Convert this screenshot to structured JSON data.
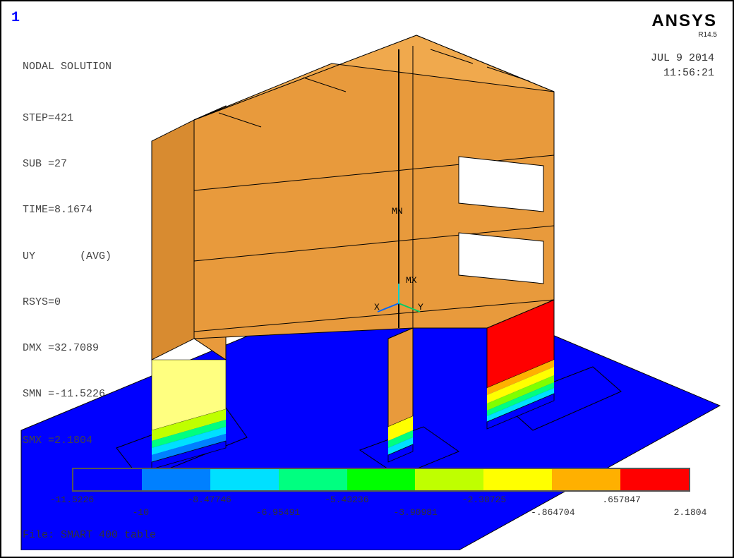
{
  "window_number": "1",
  "header": {
    "title": "NODAL SOLUTION",
    "lines": [
      "STEP=421",
      "SUB =27",
      "TIME=8.1674",
      "UY       (AVG)",
      "RSYS=0",
      "DMX =32.7089",
      "SMN =-11.5226",
      "SMX =2.1804"
    ]
  },
  "branding": {
    "brand": "ANSYS",
    "version": "R14.5"
  },
  "datetime": {
    "date": "JUL  9 2014",
    "time": "11:56:21"
  },
  "labels": {
    "mn": "MN",
    "mx": "MX",
    "x": "X",
    "y": "Y"
  },
  "file_label": "File: SMART 400 table",
  "legend": {
    "colors": [
      "#0000ff",
      "#0080ff",
      "#00e0ff",
      "#00ff80",
      "#00ff00",
      "#bfff00",
      "#ffff00",
      "#ffb000",
      "#ff0000"
    ],
    "ticks_top": [
      "-11.5226",
      "-8.47746",
      "-5.43236",
      "-2.38725",
      ".657847"
    ],
    "ticks_bottom": [
      "-10",
      "-6.95491",
      "-3.90981",
      "-.864704",
      "2.1804"
    ]
  },
  "scene": {
    "ground_color": "#0000ff",
    "structure_color": "#e89a3c",
    "highlight_colors": {
      "red": "#ff0000",
      "yellow": "#ffff00",
      "lime": "#80ff00",
      "green": "#00ff00",
      "cyan": "#00ffff",
      "lightblue": "#0080ff"
    },
    "outline": "#000000"
  }
}
